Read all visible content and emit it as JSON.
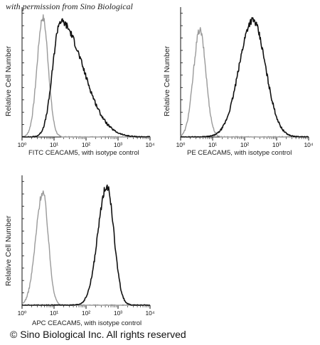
{
  "watermark": "with permission from Sino Biological",
  "copyright": "© Sino Biological Inc. All rights reserved",
  "colors": {
    "sample": "#111111",
    "isotype": "#9a9a9a"
  },
  "chart_data": [
    {
      "type": "line",
      "xlabel": "FITC CEACAM5,  with isotype control",
      "ylabel": "Relative Cell Number",
      "xscale": "log",
      "xlim": [
        1,
        10000
      ],
      "xticks": [
        "10⁰",
        "10¹",
        "10²",
        "10³",
        "10⁴"
      ],
      "series": [
        {
          "role": "isotype",
          "peaks": [
            {
              "center_log": 0.65,
              "height": 0.95,
              "sigma_left": 0.18,
              "sigma_right": 0.17
            }
          ]
        },
        {
          "role": "sample",
          "peaks": [
            {
              "center_log": 1.2,
              "height": 0.92,
              "sigma_left": 0.24,
              "sigma_right": 0.7
            }
          ]
        }
      ]
    },
    {
      "type": "line",
      "xlabel": "PE CEACAM5,  with isotype control",
      "ylabel": "Relative Cell Number",
      "xscale": "log",
      "xlim": [
        1,
        10000
      ],
      "xticks": [
        "10⁰",
        "10¹",
        "10²",
        "10³",
        "10⁴"
      ],
      "series": [
        {
          "role": "isotype",
          "peaks": [
            {
              "center_log": 0.6,
              "height": 0.85,
              "sigma_left": 0.2,
              "sigma_right": 0.19
            }
          ]
        },
        {
          "role": "sample",
          "peaks": [
            {
              "center_log": 2.25,
              "height": 0.93,
              "sigma_left": 0.42,
              "sigma_right": 0.4
            }
          ]
        }
      ]
    },
    {
      "type": "line",
      "xlabel": "APC CEACAM5,  with isotype control",
      "ylabel": "Relative Cell Number",
      "xscale": "log",
      "xlim": [
        1,
        10000
      ],
      "xticks": [
        "10⁰",
        "10¹",
        "10²",
        "10³",
        "10⁴"
      ],
      "series": [
        {
          "role": "isotype",
          "peaks": [
            {
              "center_log": 0.65,
              "height": 0.9,
              "sigma_left": 0.22,
              "sigma_right": 0.17
            }
          ]
        },
        {
          "role": "sample",
          "peaks": [
            {
              "center_log": 2.65,
              "height": 0.95,
              "sigma_left": 0.28,
              "sigma_right": 0.22
            }
          ]
        }
      ]
    }
  ]
}
